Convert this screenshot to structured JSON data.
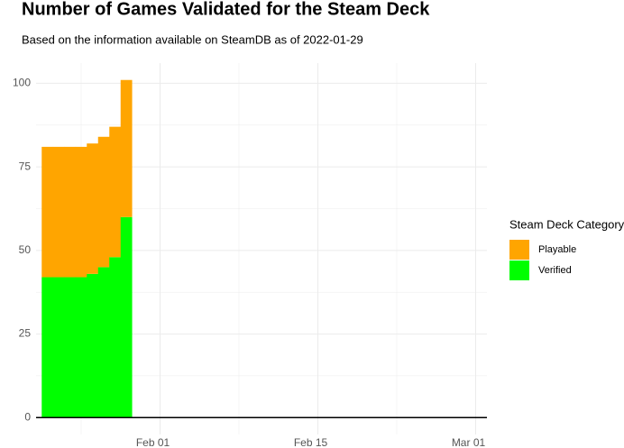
{
  "chart_data": {
    "type": "stacked_bar",
    "title": "Number of Games Validated for the Steam Deck",
    "subtitle": "Based on the information available on SteamDB as of 2022-01-29",
    "x": [
      "2022-01-22",
      "2022-01-23",
      "2022-01-24",
      "2022-01-25",
      "2022-01-26",
      "2022-01-27",
      "2022-01-28",
      "2022-01-29"
    ],
    "series": [
      {
        "name": "Playable",
        "color": "#FFA500",
        "values": [
          39,
          39,
          39,
          39,
          39,
          39,
          39,
          41
        ]
      },
      {
        "name": "Verified",
        "color": "#00FF00",
        "values": [
          42,
          42,
          42,
          42,
          43,
          45,
          48,
          60
        ]
      }
    ],
    "xlim": [
      "2022-01-21",
      "2022-03-02"
    ],
    "xticks": [
      {
        "value": "2022-02-01",
        "label": "Feb 01"
      },
      {
        "value": "2022-02-15",
        "label": "Feb 15"
      },
      {
        "value": "2022-03-01",
        "label": "Mar 01"
      }
    ],
    "ylim": [
      -5.05,
      106.05
    ],
    "yticks": [
      0,
      25,
      50,
      75,
      100
    ],
    "legend_title": "Steam Deck Category",
    "grid": true
  }
}
